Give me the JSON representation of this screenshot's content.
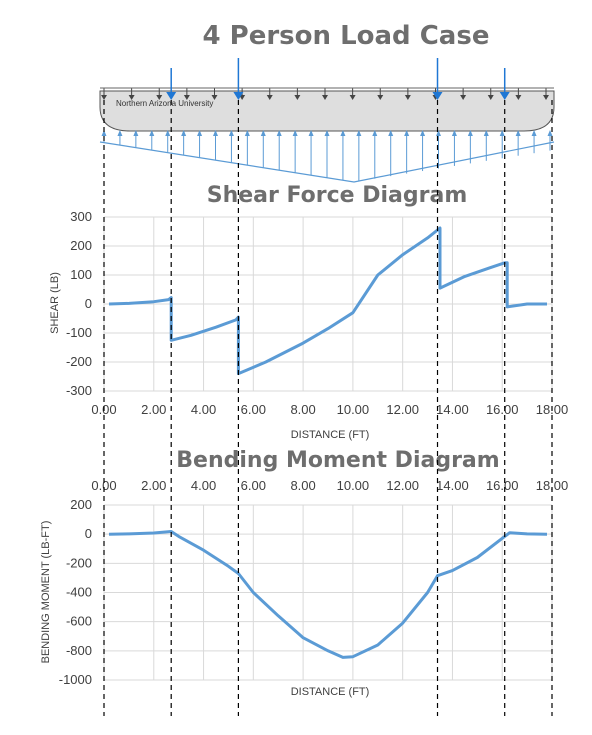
{
  "main_title": "4 Person Load Case",
  "beam": {
    "label": "Northern Arizona University",
    "point_load_positions_ft": [
      2.7,
      5.4,
      13.4,
      16.1
    ]
  },
  "chart_data": [
    {
      "type": "line",
      "title": "Shear Force Diagram",
      "xlabel": "DISTANCE (FT)",
      "ylabel": "SHEAR (LB)",
      "xlim": [
        0,
        18
      ],
      "ylim": [
        -300,
        300
      ],
      "xticks": [
        "0.00",
        "2.00",
        "4.00",
        "6.00",
        "8.00",
        "10.00",
        "12.00",
        "14.00",
        "16.00",
        "18.00"
      ],
      "yticks": [
        "300",
        "200",
        "100",
        "0",
        "-100",
        "-200",
        "-300"
      ],
      "series": [
        {
          "x": [
            0.2,
            1.0,
            2.0,
            2.6,
            2.7,
            2.7,
            3.5,
            4.5,
            5.3,
            5.4,
            5.4,
            6.5,
            8.0,
            9.0,
            10.0,
            11.0,
            12.0,
            13.0,
            13.5,
            13.5,
            14.5,
            15.5,
            16.1,
            16.2,
            16.2,
            17.0,
            17.8
          ],
          "y": [
            0,
            2,
            8,
            15,
            22,
            -125,
            -108,
            -80,
            -55,
            -45,
            -240,
            -200,
            -135,
            -85,
            -30,
            100,
            170,
            228,
            262,
            55,
            95,
            125,
            142,
            142,
            -10,
            0,
            0
          ]
        }
      ],
      "color": "#5b9bd5"
    },
    {
      "type": "line",
      "title": "Bending Moment Diagram",
      "xlabel": "DISTANCE (FT)",
      "ylabel": "BENDING MOMENT (LB-FT)",
      "xlim": [
        0,
        18
      ],
      "ylim": [
        -1000,
        200
      ],
      "xticks": [
        "0.00",
        "2.00",
        "4.00",
        "6.00",
        "8.00",
        "10.00",
        "12.00",
        "14.00",
        "16.00",
        "18.00"
      ],
      "yticks": [
        "200",
        "0",
        "-200",
        "-400",
        "-600",
        "-800",
        "-1000"
      ],
      "series": [
        {
          "x": [
            0.2,
            1.0,
            2.0,
            2.7,
            3.0,
            4.0,
            5.0,
            5.4,
            6.0,
            7.0,
            8.0,
            9.0,
            9.6,
            10.0,
            11.0,
            12.0,
            13.0,
            13.4,
            14.0,
            15.0,
            16.1,
            16.3,
            17.0,
            17.8
          ],
          "y": [
            0,
            2,
            8,
            18,
            -15,
            -110,
            -220,
            -270,
            -400,
            -560,
            -710,
            -800,
            -845,
            -840,
            -760,
            -610,
            -400,
            -285,
            -250,
            -160,
            -15,
            10,
            2,
            0
          ]
        }
      ],
      "color": "#5b9bd5"
    }
  ]
}
